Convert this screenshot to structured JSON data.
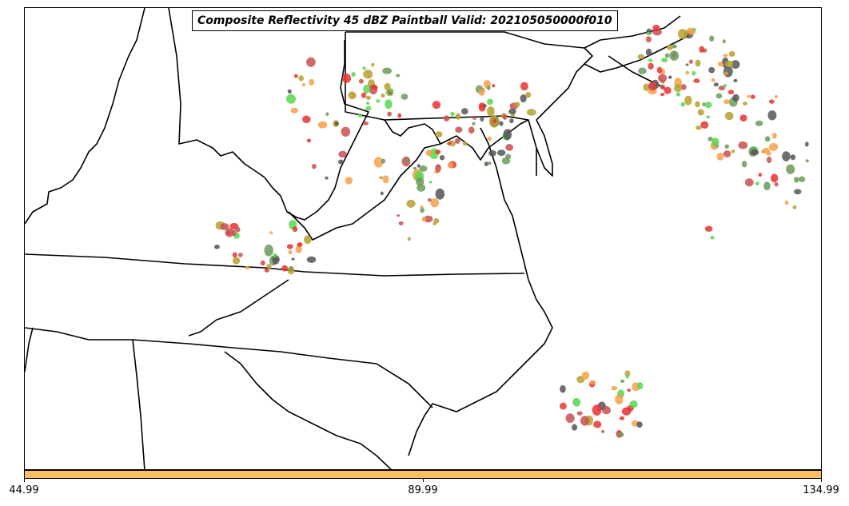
{
  "title": "Composite Reflectivity 45 dBZ Paintball Valid: 202105050000f010",
  "map": {
    "boundaries": "state boundaries",
    "storm_colors": [
      "#e8332f",
      "#f6a04a",
      "#55d84e",
      "#b79f2f",
      "#555555",
      "#6a9a5a",
      "#c85050"
    ],
    "cell_color_fill": "#f6a04a"
  },
  "colorbar": {
    "color": "#fcbe62",
    "tick_labels": [
      "44.99",
      "89.99",
      "134.99"
    ]
  }
}
